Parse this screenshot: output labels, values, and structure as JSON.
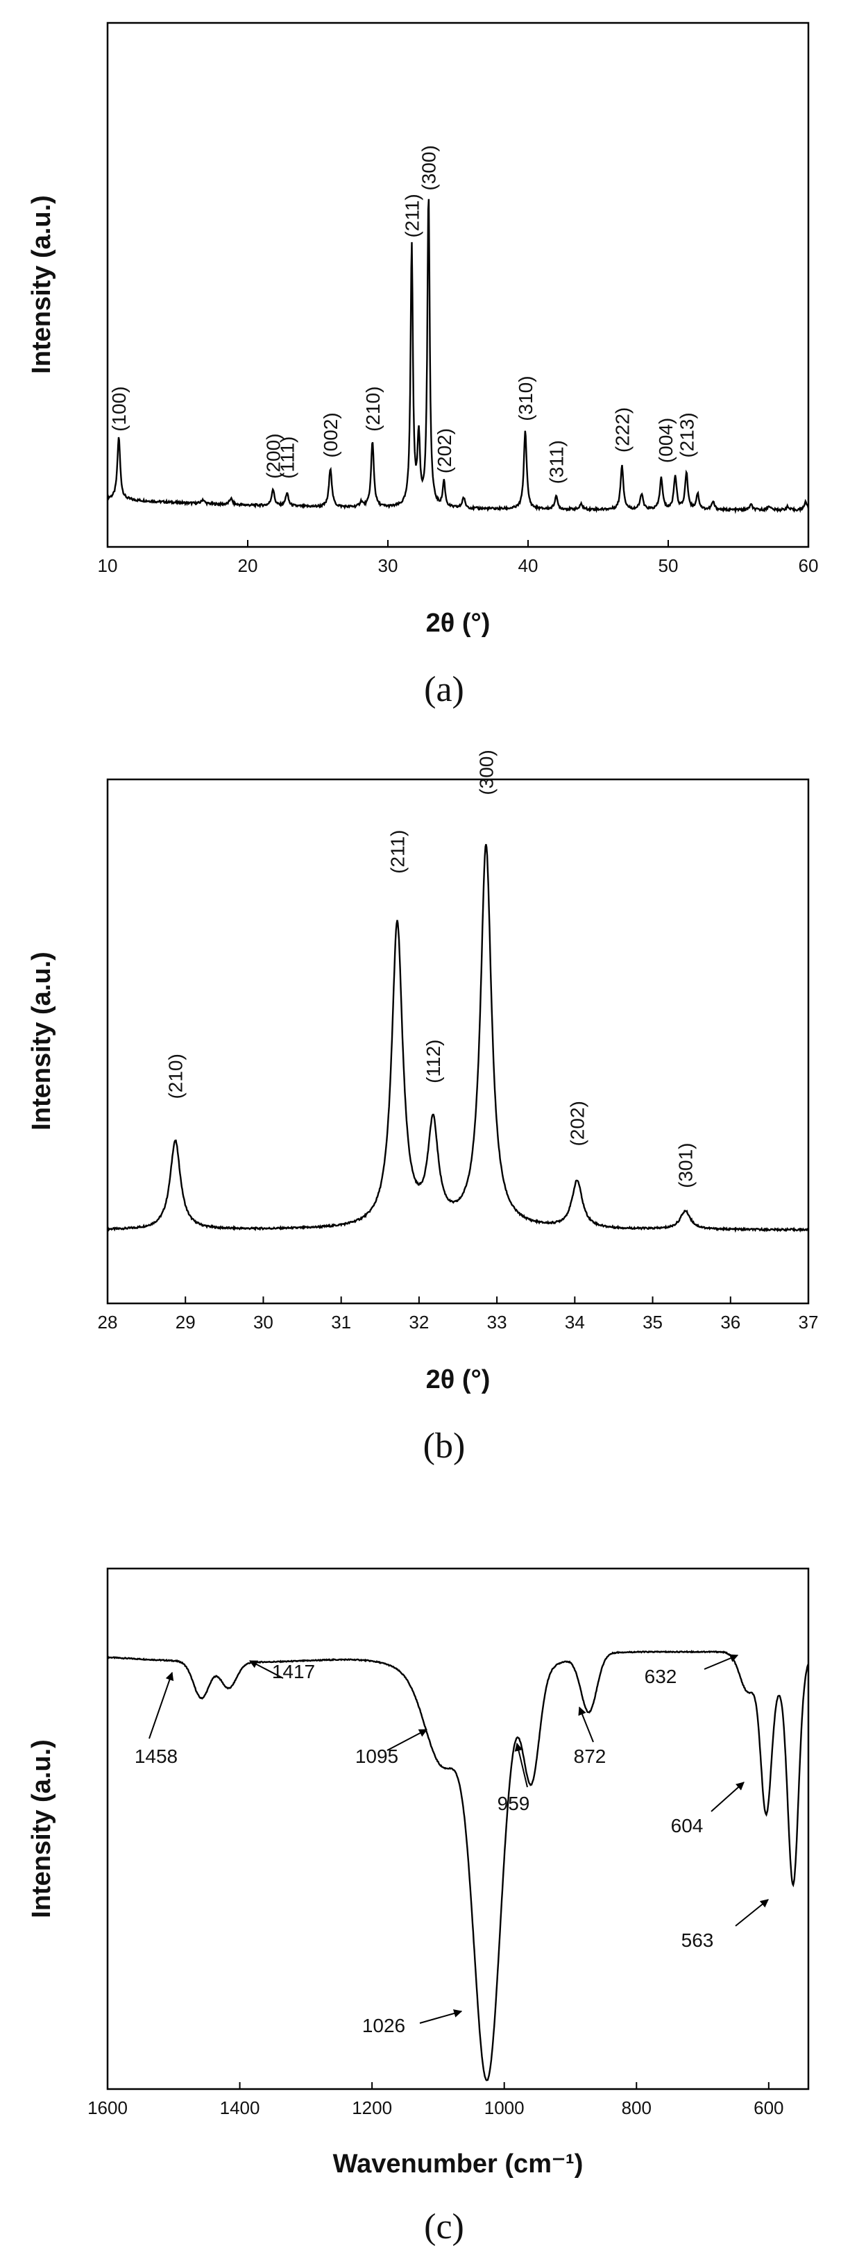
{
  "chart_data": [
    {
      "panel": "(a)",
      "type": "line",
      "xlabel": "2θ (°)",
      "ylabel": "Intensity (a.u.)",
      "xlim": [
        10,
        60
      ],
      "ylim": [
        0,
        100
      ],
      "xticks": [
        10,
        20,
        30,
        40,
        50,
        60
      ],
      "baseline": 7,
      "series": [
        {
          "peaks": [
            {
              "x": 10.8,
              "h": 12,
              "w": 0.12
            },
            {
              "x": 16.8,
              "h": 0.8,
              "w": 0.12
            },
            {
              "x": 18.8,
              "h": 1.2,
              "w": 0.12
            },
            {
              "x": 21.8,
              "h": 3.2,
              "w": 0.12
            },
            {
              "x": 22.8,
              "h": 2.5,
              "w": 0.12
            },
            {
              "x": 25.9,
              "h": 7.5,
              "w": 0.12
            },
            {
              "x": 28.1,
              "h": 1.0,
              "w": 0.12
            },
            {
              "x": 28.9,
              "h": 12.5,
              "w": 0.12
            },
            {
              "x": 31.7,
              "h": 50,
              "w": 0.1
            },
            {
              "x": 32.2,
              "h": 13,
              "w": 0.1
            },
            {
              "x": 32.9,
              "h": 60,
              "w": 0.1
            },
            {
              "x": 34.0,
              "h": 5,
              "w": 0.1
            },
            {
              "x": 35.4,
              "h": 2,
              "w": 0.12
            },
            {
              "x": 39.8,
              "h": 15,
              "w": 0.12
            },
            {
              "x": 42.0,
              "h": 2.5,
              "w": 0.12
            },
            {
              "x": 43.8,
              "h": 1.0,
              "w": 0.12
            },
            {
              "x": 46.7,
              "h": 8.5,
              "w": 0.12
            },
            {
              "x": 48.1,
              "h": 3.0,
              "w": 0.12
            },
            {
              "x": 49.5,
              "h": 6.0,
              "w": 0.12
            },
            {
              "x": 50.5,
              "h": 6.5,
              "w": 0.12
            },
            {
              "x": 51.3,
              "h": 7.0,
              "w": 0.12
            },
            {
              "x": 52.1,
              "h": 3.0,
              "w": 0.12
            },
            {
              "x": 53.2,
              "h": 1.5,
              "w": 0.12
            },
            {
              "x": 55.9,
              "h": 1.0,
              "w": 0.12
            },
            {
              "x": 57.2,
              "h": 0.8,
              "w": 0.12
            },
            {
              "x": 58.5,
              "h": 0.6,
              "w": 0.12
            },
            {
              "x": 59.8,
              "h": 1.6,
              "w": 0.12
            }
          ]
        }
      ],
      "annotations": [
        {
          "text": "(100)",
          "x": 10.8,
          "y": 22
        },
        {
          "text": "(200)",
          "x": 21.8,
          "y": 13
        },
        {
          "text": "(111)",
          "x": 22.8,
          "y": 13
        },
        {
          "text": "(002)",
          "x": 25.9,
          "y": 17
        },
        {
          "text": "(210)",
          "x": 28.9,
          "y": 22
        },
        {
          "text": "(211)",
          "x": 31.7,
          "y": 59
        },
        {
          "text": "(300)",
          "x": 32.9,
          "y": 68
        },
        {
          "text": "(202)",
          "x": 34.0,
          "y": 14
        },
        {
          "text": "(310)",
          "x": 39.8,
          "y": 24
        },
        {
          "text": "(311)",
          "x": 42.0,
          "y": 12
        },
        {
          "text": "(222)",
          "x": 46.7,
          "y": 18
        },
        {
          "text": "(004)",
          "x": 49.8,
          "y": 16
        },
        {
          "text": "(213)",
          "x": 51.3,
          "y": 17
        }
      ]
    },
    {
      "panel": "(b)",
      "type": "line",
      "xlabel": "2θ (°)",
      "ylabel": "Intensity (a.u.)",
      "xlim": [
        28,
        37
      ],
      "ylim": [
        0,
        100
      ],
      "xticks": [
        28,
        29,
        30,
        31,
        32,
        33,
        34,
        35,
        36,
        37
      ],
      "baseline": 14,
      "series": [
        {
          "peaks": [
            {
              "x": 28.87,
              "h": 17,
              "w": 0.08
            },
            {
              "x": 31.72,
              "h": 58,
              "w": 0.085
            },
            {
              "x": 32.18,
              "h": 19,
              "w": 0.08
            },
            {
              "x": 32.86,
              "h": 73,
              "w": 0.085
            },
            {
              "x": 34.03,
              "h": 9,
              "w": 0.08
            },
            {
              "x": 35.42,
              "h": 3.5,
              "w": 0.08
            }
          ]
        }
      ],
      "annotations": [
        {
          "text": "(210)",
          "x": 28.87,
          "y": 39
        },
        {
          "text": "(211)",
          "x": 31.72,
          "y": 82
        },
        {
          "text": "(112)",
          "x": 32.18,
          "y": 42
        },
        {
          "text": "(300)",
          "x": 32.86,
          "y": 97
        },
        {
          "text": "(202)",
          "x": 34.03,
          "y": 30
        },
        {
          "text": "(301)",
          "x": 35.42,
          "y": 22
        }
      ]
    },
    {
      "panel": "(c)",
      "type": "line",
      "xlabel": "Wavenumber (cm⁻¹)",
      "ylabel": "Intensity (a.u.)",
      "xlim": [
        1600,
        540
      ],
      "ylim": [
        0,
        100
      ],
      "xticks": [
        1600,
        1400,
        1200,
        1000,
        800,
        600
      ],
      "baseline": 84,
      "series": [
        {
          "bands": [
            {
              "x": 1458,
              "d": 7,
              "w": 12
            },
            {
              "x": 1417,
              "d": 5,
              "w": 12
            },
            {
              "x": 1095,
              "d": 14,
              "w": 25
            },
            {
              "x": 1026,
              "d": 72,
              "w": 20
            },
            {
              "x": 959,
              "d": 20,
              "w": 12
            },
            {
              "x": 872,
              "d": 11,
              "w": 12
            },
            {
              "x": 632,
              "d": 7,
              "w": 12
            },
            {
              "x": 604,
              "d": 27,
              "w": 8
            },
            {
              "x": 563,
              "d": 40,
              "w": 8
            }
          ]
        }
      ],
      "annotations": [
        {
          "text": "1458",
          "x": 1458
        },
        {
          "text": "1417",
          "x": 1417
        },
        {
          "text": "1095",
          "x": 1095
        },
        {
          "text": "1026",
          "x": 1026
        },
        {
          "text": "959",
          "x": 959
        },
        {
          "text": "872",
          "x": 872
        },
        {
          "text": "632",
          "x": 632
        },
        {
          "text": "604",
          "x": 604
        },
        {
          "text": "563",
          "x": 563
        }
      ]
    }
  ]
}
